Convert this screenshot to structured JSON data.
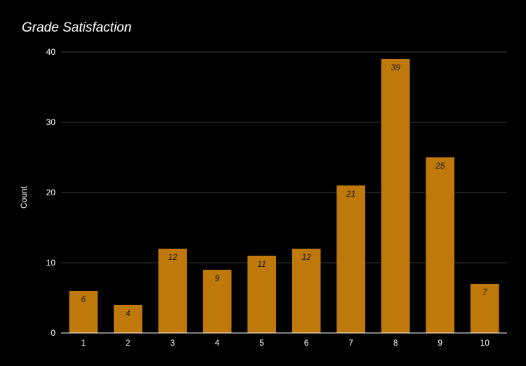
{
  "chart_data": {
    "type": "bar",
    "title": "Grade Satisfaction",
    "xlabel": "",
    "ylabel": "Count",
    "categories": [
      "1",
      "2",
      "3",
      "4",
      "5",
      "6",
      "7",
      "8",
      "9",
      "10"
    ],
    "series": [
      {
        "values": [
          6,
          4,
          12,
          9,
          11,
          12,
          21,
          39,
          25,
          7
        ]
      }
    ],
    "ylim": [
      0,
      40
    ],
    "yticks": [
      0,
      10,
      20,
      30,
      40
    ],
    "grid": true,
    "legend": "none",
    "data_labels": true,
    "bar_color": "#bf790b",
    "background": "#000000"
  }
}
